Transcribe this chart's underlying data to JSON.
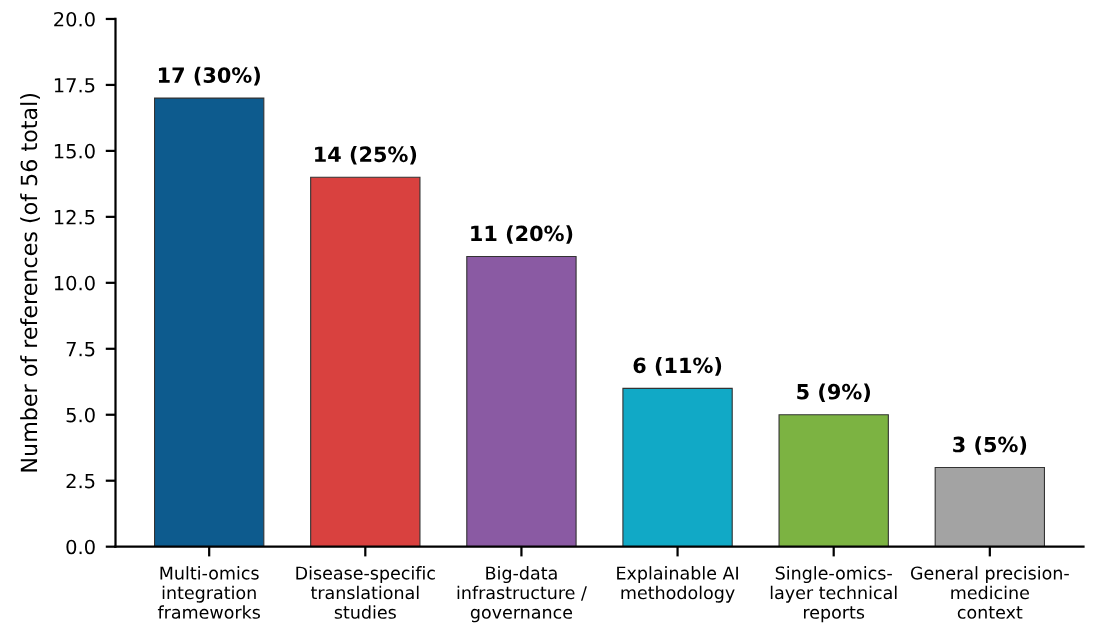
{
  "chart_data": {
    "type": "bar",
    "ylabel": "Number of references (of 56 total)",
    "categories": [
      "Multi-omics\nintegration\nframeworks",
      "Disease-specific\ntranslational\nstudies",
      "Big-data\ninfrastructure /\ngovernance",
      "Explainable AI\nmethodology",
      "Single-omics-\nlayer technical\nreports",
      "General precision-\nmedicine\ncontext"
    ],
    "values": [
      17,
      14,
      11,
      6,
      5,
      3
    ],
    "colors": [
      "#0d5b8e",
      "#d9413f",
      "#8a5aa3",
      "#11a9c6",
      "#7cb342",
      "#a3a3a3"
    ],
    "value_labels": [
      "17 (30%)",
      "14 (25%)",
      "11 (20%)",
      "6 (11%)",
      "5 (9%)",
      "3 (5%)"
    ],
    "ylim": [
      0,
      20
    ],
    "yticks": [
      {
        "value": 0,
        "label": "0.0"
      },
      {
        "value": 2.5,
        "label": "2.5"
      },
      {
        "value": 5,
        "label": "5.0"
      },
      {
        "value": 7.5,
        "label": "7.5"
      },
      {
        "value": 10,
        "label": "10.0"
      },
      {
        "value": 12.5,
        "label": "12.5"
      },
      {
        "value": 15,
        "label": "15.0"
      },
      {
        "value": 17.5,
        "label": "17.5"
      },
      {
        "value": 20,
        "label": "20.0"
      }
    ],
    "grid": false
  }
}
